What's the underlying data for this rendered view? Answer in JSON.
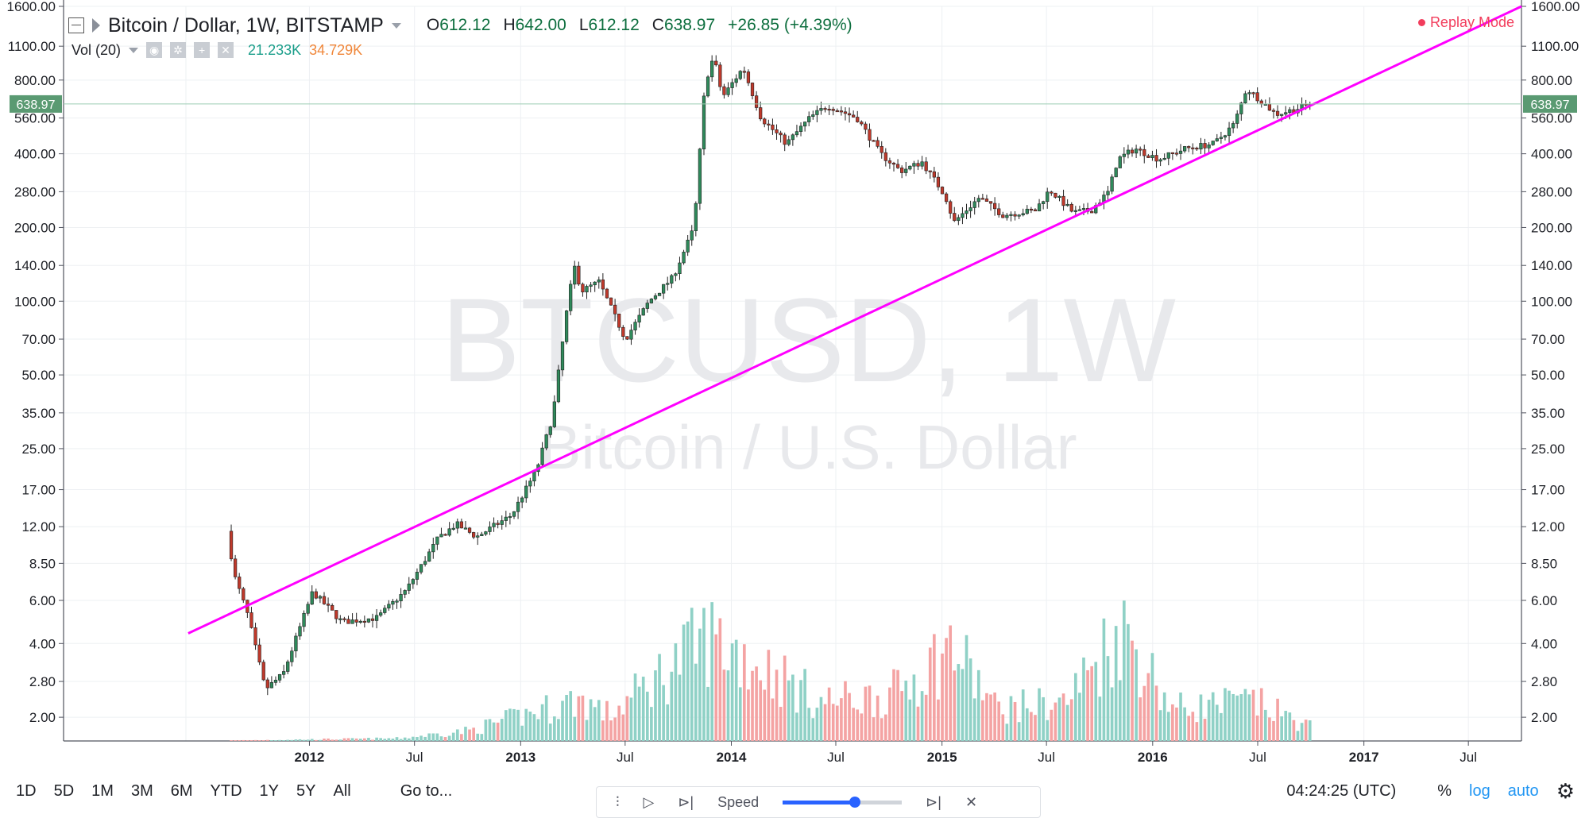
{
  "header": {
    "symbol": "Bitcoin / Dollar, 1W, BITSTAMP",
    "open_label": "O",
    "open": "612.12",
    "high_label": "H",
    "high": "642.00",
    "low_label": "L",
    "low": "612.12",
    "close_label": "C",
    "close": "638.97",
    "change": "+26.85 (+4.39%)",
    "replay": "Replay Mode"
  },
  "volume_legend": {
    "label": "Vol (20)",
    "value1": "21.233K",
    "value2": "34.729K"
  },
  "watermark": {
    "line1": "BTCUSD, 1W",
    "line2": "Bitcoin / U.S. Dollar"
  },
  "price_marker": "638.97",
  "bottom": {
    "ranges": [
      "1D",
      "5D",
      "1M",
      "3M",
      "6M",
      "YTD",
      "1Y",
      "5Y",
      "All"
    ],
    "goto": "Go to...",
    "speed": "Speed",
    "time": "04:24:25 (UTC)",
    "percent": "%",
    "log": "log",
    "auto": "auto"
  },
  "colors": {
    "up": "#2f8a5b",
    "down": "#c0392b",
    "vol_up": "#8fd1c6",
    "vol_down": "#f4a3a3",
    "trendline": "#ff00ff",
    "accent": "#2196f3"
  },
  "chart_data": {
    "type": "candlestick",
    "title": "Bitcoin / Dollar, 1W, BITSTAMP",
    "y_scale": "log",
    "ylim": [
      1.6,
      1600
    ],
    "y_ticks": [
      2.0,
      2.8,
      4.0,
      6.0,
      8.5,
      12.0,
      17.0,
      25.0,
      35.0,
      50.0,
      70.0,
      100.0,
      140.0,
      200.0,
      280.0,
      400.0,
      560.0,
      800.0,
      1100.0,
      1600.0
    ],
    "y_tick_labels": [
      "2.00",
      "2.80",
      "4.00",
      "6.00",
      "8.50",
      "12.00",
      "17.00",
      "25.00",
      "35.00",
      "50.00",
      "70.00",
      "100.00",
      "140.00",
      "200.00",
      "280.00",
      "400.00",
      "560.00",
      "800.00",
      "1100.00",
      "1600.00"
    ],
    "x_ticks": [
      "2011-06-01",
      "2012-01-01",
      "2012-07-01",
      "2013-01-01",
      "2013-07-01",
      "2014-01-01",
      "2014-07-01",
      "2015-01-01",
      "2015-07-01",
      "2016-01-01",
      "2016-07-01",
      "2017-01-01",
      "2017-07-01"
    ],
    "x_tick_labels": [
      "",
      "2012",
      "Jul",
      "2013",
      "Jul",
      "2014",
      "Jul",
      "2015",
      "Jul",
      "2016",
      "Jul",
      "2017",
      "Jul"
    ],
    "xlim": [
      "2010-11-01",
      "2017-10-01"
    ],
    "trendline": {
      "points": [
        [
          "2011-06-05",
          4.4
        ],
        [
          "2017-10-01",
          1600
        ]
      ]
    },
    "keypoints": [
      {
        "date": "2011-08-15",
        "price": 11.5
      },
      {
        "date": "2011-08-28",
        "price": 7.5
      },
      {
        "date": "2011-09-20",
        "price": 5.2
      },
      {
        "date": "2011-10-20",
        "price": 2.6
      },
      {
        "date": "2011-11-20",
        "price": 3.0
      },
      {
        "date": "2012-01-10",
        "price": 6.5
      },
      {
        "date": "2012-03-01",
        "price": 4.9
      },
      {
        "date": "2012-05-01",
        "price": 5.1
      },
      {
        "date": "2012-06-20",
        "price": 6.6
      },
      {
        "date": "2012-08-15",
        "price": 10.8
      },
      {
        "date": "2012-09-15",
        "price": 12.3
      },
      {
        "date": "2012-10-20",
        "price": 10.9
      },
      {
        "date": "2012-12-20",
        "price": 13.4
      },
      {
        "date": "2013-02-01",
        "price": 20.5
      },
      {
        "date": "2013-03-01",
        "price": 34.0
      },
      {
        "date": "2013-03-25",
        "price": 90.0
      },
      {
        "date": "2013-04-07",
        "price": 140.0
      },
      {
        "date": "2013-04-20",
        "price": 110.0
      },
      {
        "date": "2013-05-20",
        "price": 120.0
      },
      {
        "date": "2013-07-05",
        "price": 70.0
      },
      {
        "date": "2013-08-15",
        "price": 100.0
      },
      {
        "date": "2013-09-25",
        "price": 125.0
      },
      {
        "date": "2013-11-01",
        "price": 200.0
      },
      {
        "date": "2013-11-20",
        "price": 780.0
      },
      {
        "date": "2013-12-05",
        "price": 1000.0
      },
      {
        "date": "2013-12-20",
        "price": 680.0
      },
      {
        "date": "2014-01-25",
        "price": 900.0
      },
      {
        "date": "2014-02-25",
        "price": 560.0
      },
      {
        "date": "2014-04-10",
        "price": 440.0
      },
      {
        "date": "2014-05-20",
        "price": 560.0
      },
      {
        "date": "2014-06-20",
        "price": 630.0
      },
      {
        "date": "2014-08-10",
        "price": 560.0
      },
      {
        "date": "2014-09-20",
        "price": 400.0
      },
      {
        "date": "2014-10-25",
        "price": 340.0
      },
      {
        "date": "2014-12-01",
        "price": 370.0
      },
      {
        "date": "2015-01-10",
        "price": 270.0
      },
      {
        "date": "2015-01-25",
        "price": 210.0
      },
      {
        "date": "2015-03-10",
        "price": 265.0
      },
      {
        "date": "2015-04-20",
        "price": 225.0
      },
      {
        "date": "2015-06-15",
        "price": 235.0
      },
      {
        "date": "2015-07-10",
        "price": 285.0
      },
      {
        "date": "2015-08-20",
        "price": 230.0
      },
      {
        "date": "2015-09-20",
        "price": 235.0
      },
      {
        "date": "2015-10-20",
        "price": 280.0
      },
      {
        "date": "2015-11-05",
        "price": 380.0
      },
      {
        "date": "2015-12-05",
        "price": 420.0
      },
      {
        "date": "2016-01-15",
        "price": 380.0
      },
      {
        "date": "2016-03-01",
        "price": 420.0
      },
      {
        "date": "2016-04-20",
        "price": 440.0
      },
      {
        "date": "2016-05-25",
        "price": 530.0
      },
      {
        "date": "2016-06-15",
        "price": 740.0
      },
      {
        "date": "2016-07-10",
        "price": 660.0
      },
      {
        "date": "2016-08-05",
        "price": 580.0
      },
      {
        "date": "2016-09-10",
        "price": 610.0
      },
      {
        "date": "2016-10-01",
        "price": 638.97
      }
    ],
    "volume_max_label": "spikes around 2013-04, 2013-11, 2015-01, 2015-11",
    "volume_keypoints": [
      {
        "date": "2011-06-01",
        "v": 0.0
      },
      {
        "date": "2012-06-01",
        "v": 0.02
      },
      {
        "date": "2012-10-01",
        "v": 0.08
      },
      {
        "date": "2013-04-10",
        "v": 0.32
      },
      {
        "date": "2013-06-01",
        "v": 0.2
      },
      {
        "date": "2013-11-20",
        "v": 0.8
      },
      {
        "date": "2014-03-01",
        "v": 0.55
      },
      {
        "date": "2014-06-01",
        "v": 0.3
      },
      {
        "date": "2014-10-01",
        "v": 0.35
      },
      {
        "date": "2015-01-15",
        "v": 0.72
      },
      {
        "date": "2015-04-01",
        "v": 0.25
      },
      {
        "date": "2015-08-01",
        "v": 0.3
      },
      {
        "date": "2015-11-05",
        "v": 0.88
      },
      {
        "date": "2016-02-01",
        "v": 0.25
      },
      {
        "date": "2016-06-20",
        "v": 0.3
      },
      {
        "date": "2016-10-01",
        "v": 0.1
      }
    ]
  }
}
